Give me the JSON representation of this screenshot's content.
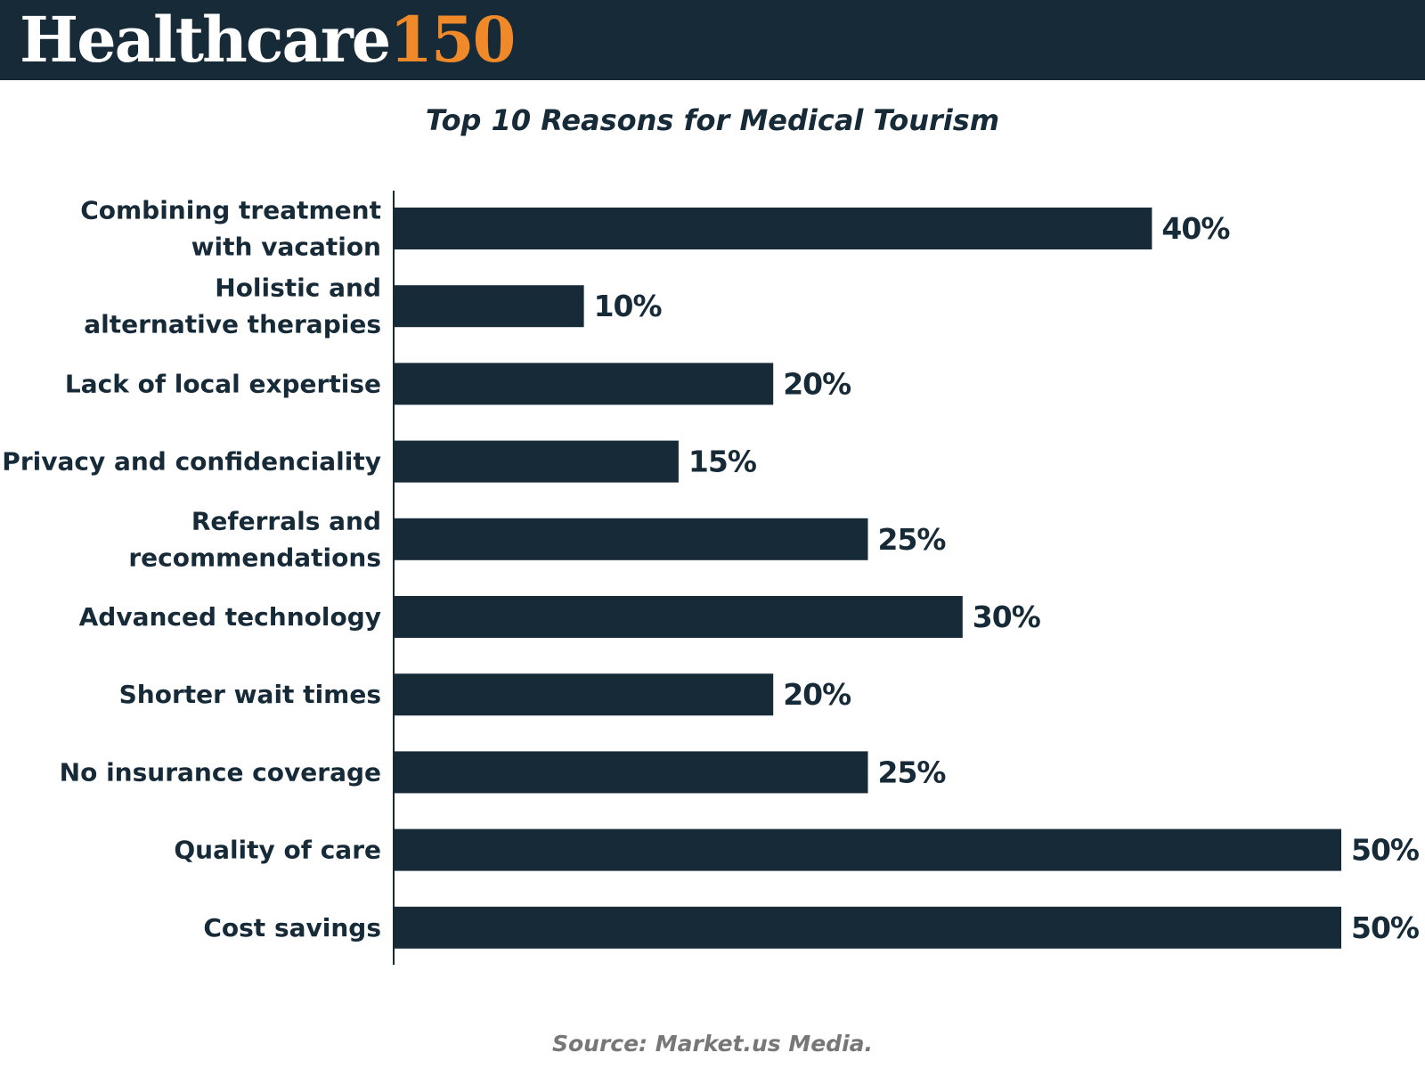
{
  "header": {
    "brand": "Healthcare",
    "brand_number": "150",
    "bg_color": "#162a38",
    "accent_color": "#f0892a"
  },
  "chart_data": {
    "type": "bar",
    "orientation": "horizontal",
    "title": "Top 10 Reasons for Medical Tourism",
    "categories": [
      [
        "Combining treatment",
        "with vacation"
      ],
      [
        "Holistic and",
        "alternative therapies"
      ],
      [
        "Lack of local expertise"
      ],
      [
        "Privacy and confidenciality"
      ],
      [
        "Referrals and",
        "recommendations"
      ],
      [
        "Advanced technology"
      ],
      [
        "Shorter wait times"
      ],
      [
        "No insurance coverage"
      ],
      [
        "Quality of care"
      ],
      [
        "Cost savings"
      ]
    ],
    "values": [
      40,
      10,
      20,
      15,
      25,
      30,
      20,
      25,
      50,
      50
    ],
    "data_labels": [
      "40%",
      "10%",
      "20%",
      "15%",
      "25%",
      "30%",
      "20%",
      "25%",
      "50%",
      "50%"
    ],
    "unit": "%",
    "xlim": [
      0,
      50
    ],
    "bar_color": "#162a38",
    "grid": false,
    "legend": "none"
  },
  "footer": {
    "source": "Source: Market.us Media."
  }
}
